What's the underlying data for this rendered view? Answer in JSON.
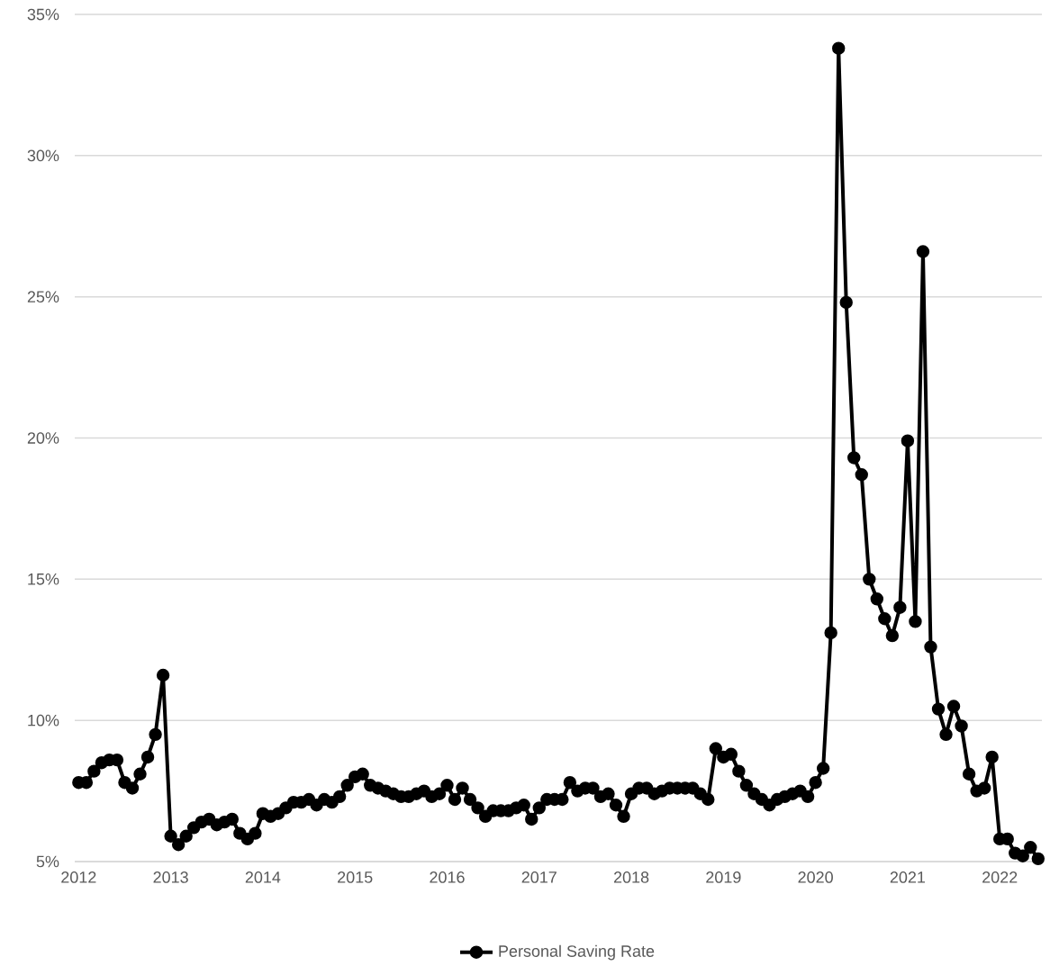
{
  "chart_data": {
    "type": "line",
    "x": [
      "2012-01",
      "2012-02",
      "2012-03",
      "2012-04",
      "2012-05",
      "2012-06",
      "2012-07",
      "2012-08",
      "2012-09",
      "2012-10",
      "2012-11",
      "2012-12",
      "2013-01",
      "2013-02",
      "2013-03",
      "2013-04",
      "2013-05",
      "2013-06",
      "2013-07",
      "2013-08",
      "2013-09",
      "2013-10",
      "2013-11",
      "2013-12",
      "2014-01",
      "2014-02",
      "2014-03",
      "2014-04",
      "2014-05",
      "2014-06",
      "2014-07",
      "2014-08",
      "2014-09",
      "2014-10",
      "2014-11",
      "2014-12",
      "2015-01",
      "2015-02",
      "2015-03",
      "2015-04",
      "2015-05",
      "2015-06",
      "2015-07",
      "2015-08",
      "2015-09",
      "2015-10",
      "2015-11",
      "2015-12",
      "2016-01",
      "2016-02",
      "2016-03",
      "2016-04",
      "2016-05",
      "2016-06",
      "2016-07",
      "2016-08",
      "2016-09",
      "2016-10",
      "2016-11",
      "2016-12",
      "2017-01",
      "2017-02",
      "2017-03",
      "2017-04",
      "2017-05",
      "2017-06",
      "2017-07",
      "2017-08",
      "2017-09",
      "2017-10",
      "2017-11",
      "2017-12",
      "2018-01",
      "2018-02",
      "2018-03",
      "2018-04",
      "2018-05",
      "2018-06",
      "2018-07",
      "2018-08",
      "2018-09",
      "2018-10",
      "2018-11",
      "2018-12",
      "2019-01",
      "2019-02",
      "2019-03",
      "2019-04",
      "2019-05",
      "2019-06",
      "2019-07",
      "2019-08",
      "2019-09",
      "2019-10",
      "2019-11",
      "2019-12",
      "2020-01",
      "2020-02",
      "2020-03",
      "2020-04",
      "2020-05",
      "2020-06",
      "2020-07",
      "2020-08",
      "2020-09",
      "2020-10",
      "2020-11",
      "2020-12",
      "2021-01",
      "2021-02",
      "2021-03",
      "2021-04",
      "2021-05",
      "2021-06",
      "2021-07",
      "2021-08",
      "2021-09",
      "2021-10",
      "2021-11",
      "2021-12",
      "2022-01",
      "2022-02",
      "2022-03",
      "2022-04",
      "2022-05",
      "2022-06"
    ],
    "series": [
      {
        "name": "Personal Saving Rate",
        "color": "#000000",
        "values": [
          7.8,
          7.8,
          8.2,
          8.5,
          8.6,
          8.6,
          7.8,
          7.6,
          8.1,
          8.7,
          9.5,
          11.6,
          5.9,
          5.6,
          5.9,
          6.2,
          6.4,
          6.5,
          6.3,
          6.4,
          6.5,
          6.0,
          5.8,
          6.0,
          6.7,
          6.6,
          6.7,
          6.9,
          7.1,
          7.1,
          7.2,
          7.0,
          7.2,
          7.1,
          7.3,
          7.7,
          8.0,
          8.1,
          7.7,
          7.6,
          7.5,
          7.4,
          7.3,
          7.3,
          7.4,
          7.5,
          7.3,
          7.4,
          7.7,
          7.2,
          7.6,
          7.2,
          6.9,
          6.6,
          6.8,
          6.8,
          6.8,
          6.9,
          7.0,
          6.5,
          6.9,
          7.2,
          7.2,
          7.2,
          7.8,
          7.5,
          7.6,
          7.6,
          7.3,
          7.4,
          7.0,
          6.6,
          7.4,
          7.6,
          7.6,
          7.4,
          7.5,
          7.6,
          7.6,
          7.6,
          7.6,
          7.4,
          7.2,
          9.0,
          8.7,
          8.8,
          8.2,
          7.7,
          7.4,
          7.2,
          7.0,
          7.2,
          7.3,
          7.4,
          7.5,
          7.3,
          7.8,
          8.3,
          13.1,
          33.8,
          24.8,
          19.3,
          18.7,
          15.0,
          14.3,
          13.6,
          13.0,
          14.0,
          19.9,
          13.5,
          26.6,
          12.6,
          10.4,
          9.5,
          10.5,
          9.8,
          8.1,
          7.5,
          7.6,
          8.7,
          5.8,
          5.8,
          5.3,
          5.2,
          5.5,
          5.1
        ]
      }
    ],
    "xlim": [
      "2011-12-16",
      "2022-06-16"
    ],
    "xticks": [
      {
        "value": "2012-01",
        "label": "2012"
      },
      {
        "value": "2013-01",
        "label": "2013"
      },
      {
        "value": "2014-01",
        "label": "2014"
      },
      {
        "value": "2015-01",
        "label": "2015"
      },
      {
        "value": "2016-01",
        "label": "2016"
      },
      {
        "value": "2017-01",
        "label": "2017"
      },
      {
        "value": "2018-01",
        "label": "2018"
      },
      {
        "value": "2019-01",
        "label": "2019"
      },
      {
        "value": "2020-01",
        "label": "2020"
      },
      {
        "value": "2021-01",
        "label": "2021"
      },
      {
        "value": "2022-01",
        "label": "2022"
      }
    ],
    "ylim": [
      5,
      35
    ],
    "yticks": [
      {
        "value": 5,
        "label": "5%"
      },
      {
        "value": 10,
        "label": "10%"
      },
      {
        "value": 15,
        "label": "15%"
      },
      {
        "value": 20,
        "label": "20%"
      },
      {
        "value": 25,
        "label": "25%"
      },
      {
        "value": 30,
        "label": "30%"
      },
      {
        "value": 35,
        "label": "35%"
      }
    ],
    "grid": "y",
    "legend": "bottom",
    "marker": "circle",
    "line_style": "solid"
  }
}
